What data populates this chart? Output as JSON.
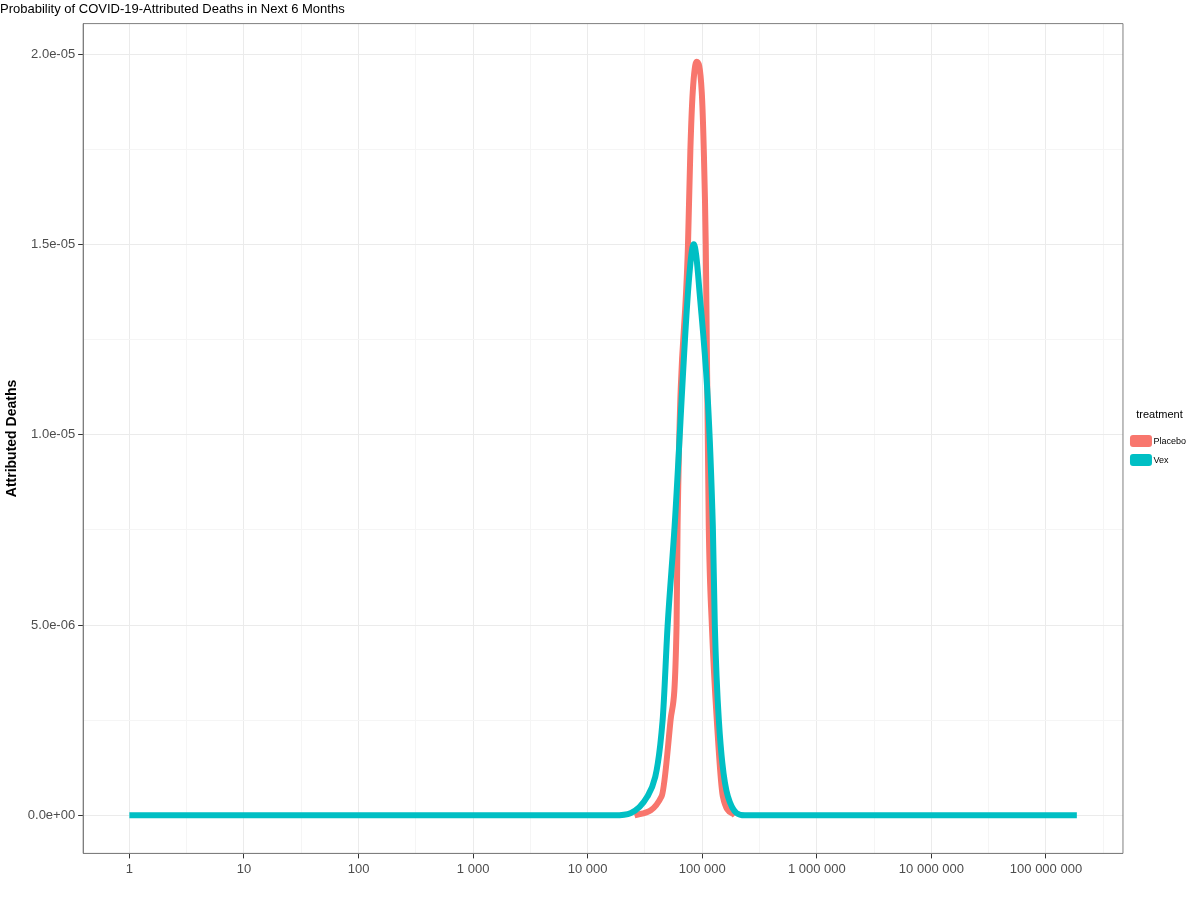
{
  "chart_data": {
    "type": "line",
    "title": "Probability of COVID-19-Attributed Deaths in Next 6 Months",
    "ylabel": "Attributed Deaths",
    "legend_title": "treatment",
    "log": "x",
    "grid": true,
    "legend": "right",
    "marker": "none",
    "line_style": "solid",
    "xlim": [
      0.395,
      470000000
    ],
    "xticks": [
      {
        "value": 1,
        "label": "1"
      },
      {
        "value": 3.162,
        "label": null
      },
      {
        "value": 10,
        "label": "10"
      },
      {
        "value": 31.62,
        "label": null
      },
      {
        "value": 100,
        "label": "100"
      },
      {
        "value": 316.2,
        "label": null
      },
      {
        "value": 1000,
        "label": "1 000"
      },
      {
        "value": 3162,
        "label": null
      },
      {
        "value": 10000,
        "label": "10 000"
      },
      {
        "value": 31620,
        "label": null
      },
      {
        "value": 100000,
        "label": "100 000"
      },
      {
        "value": 316200,
        "label": null
      },
      {
        "value": 1000000,
        "label": "1 000 000"
      },
      {
        "value": 3162000,
        "label": null
      },
      {
        "value": 10000000,
        "label": "10 000 000"
      },
      {
        "value": 31620000,
        "label": null
      },
      {
        "value": 100000000,
        "label": "100 000 000"
      },
      {
        "value": 316200000,
        "label": null
      }
    ],
    "ylim": [
      -1e-06,
      2.08e-05
    ],
    "yticks": [
      {
        "value": 0,
        "label": "0.0e+00"
      },
      {
        "value": 2.5e-06,
        "label": null
      },
      {
        "value": 5e-06,
        "label": "5.0e-06"
      },
      {
        "value": 7.5e-06,
        "label": null
      },
      {
        "value": 1e-05,
        "label": "1.0e-05"
      },
      {
        "value": 1.25e-05,
        "label": null
      },
      {
        "value": 1.5e-05,
        "label": "1.5e-05"
      },
      {
        "value": 1.75e-05,
        "label": null
      },
      {
        "value": 2e-05,
        "label": "2.0e-05"
      }
    ],
    "series": [
      {
        "name": "Placebo",
        "color": "#f8766d",
        "x": [
          25600,
          44200,
          52900,
          59700,
          60900,
          75100,
          78800,
          82600,
          89500,
          99000,
          103100,
          107300,
          114000,
          121300,
          134000,
          151300,
          192800
        ],
        "values": [
          0,
          5e-07,
          2.5e-06,
          5e-06,
          7.6e-06,
          1.5e-05,
          1.75e-05,
          1.9e-05,
          1.98e-05,
          1.9e-05,
          1.75e-05,
          1.5e-05,
          7.6e-06,
          5e-06,
          2.5e-06,
          5e-07,
          0
        ]
      },
      {
        "name": "Vex",
        "color": "#00bfc4",
        "x": [
          1,
          10,
          100,
          1000,
          10000,
          17100,
          33300,
          45100,
          49900,
          57400,
          76200,
          84300,
          93200,
          123700,
          128700,
          139600,
          167400,
          236000,
          1000000,
          10000000,
          100000000,
          186000000
        ],
        "values": [
          0,
          0,
          0,
          0,
          0,
          0,
          5e-07,
          2.5e-06,
          5e-06,
          7.6e-06,
          1.4e-05,
          1.5e-05,
          1.4e-05,
          7.6e-06,
          5e-06,
          2.5e-06,
          5e-07,
          0,
          0,
          0,
          0,
          0
        ]
      }
    ]
  }
}
